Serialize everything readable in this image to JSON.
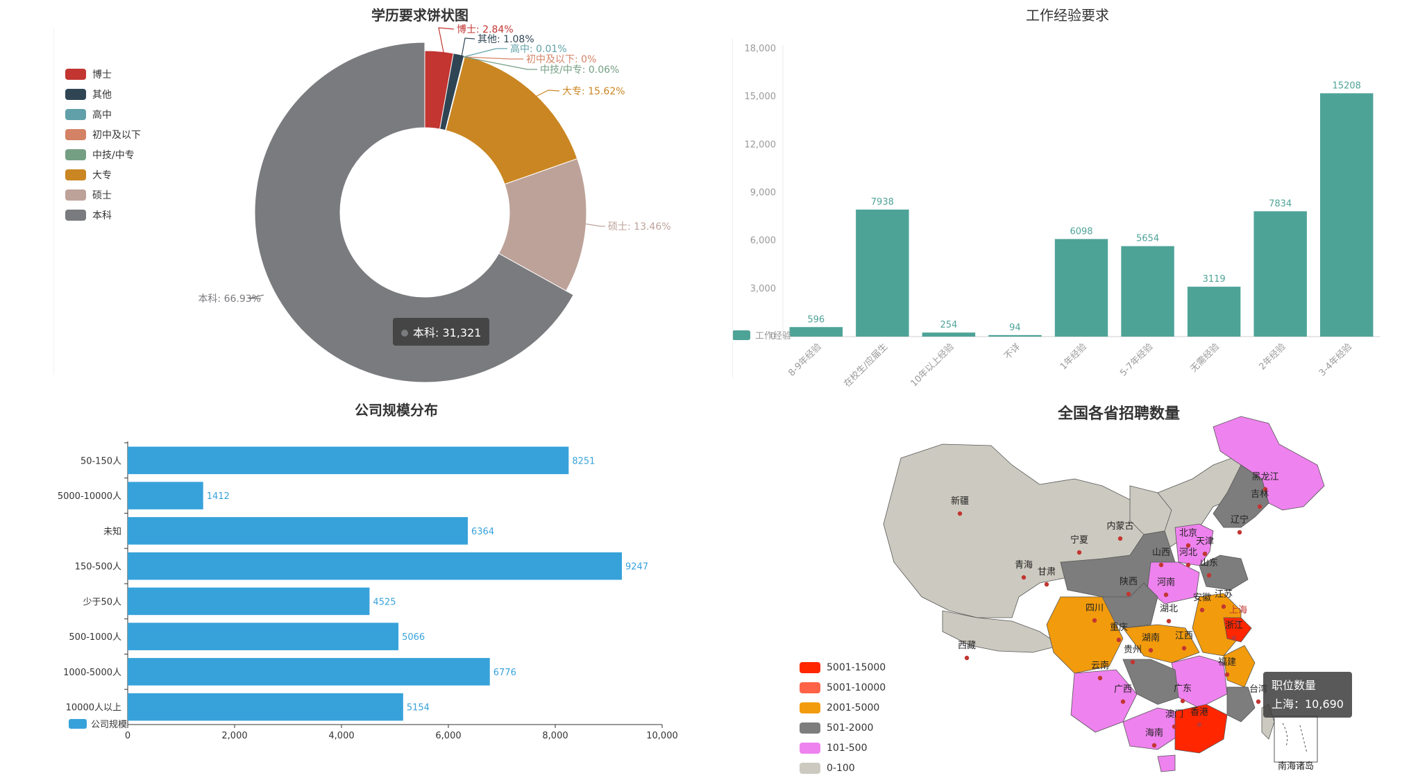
{
  "chart_data": [
    {
      "type": "pie",
      "title": "学历要求饼状图",
      "legend_position": "left",
      "slices": [
        {
          "name": "博士",
          "percent": 2.84,
          "color": "#c23531"
        },
        {
          "name": "其他",
          "percent": 1.08,
          "color": "#2f4554"
        },
        {
          "name": "高中",
          "percent": 0.01,
          "color": "#61a0a8"
        },
        {
          "name": "初中及以下",
          "percent": 0,
          "color": "#d48265"
        },
        {
          "name": "中技/中专",
          "percent": 0.06,
          "color": "#749f83"
        },
        {
          "name": "大专",
          "percent": 15.62,
          "color": "#ca8622"
        },
        {
          "name": "硕士",
          "percent": 13.46,
          "color": "#bda29a"
        },
        {
          "name": "本科",
          "percent": 66.93,
          "color": "#7a7b7e"
        }
      ],
      "slice_labels": [
        "博士: 2.84%",
        "其他: 1.08%",
        "高中: 0.01%",
        "初中及以下: 0%",
        "中技/中专: 0.06%",
        "大专: 15.62%",
        "硕士: 13.46%",
        "本科: 66.93%"
      ],
      "tooltip": "本科: 31,321"
    },
    {
      "type": "bar",
      "title": "工作经验要求",
      "categories": [
        "8-9年经验",
        "在校生/应届生",
        "10年以上经验",
        "不详",
        "1年经验",
        "5-7年经验",
        "无需经验",
        "2年经验",
        "3-4年经验"
      ],
      "series": [
        {
          "name": "工作经验",
          "values": [
            596,
            7938,
            254,
            94,
            6098,
            5654,
            3119,
            7834,
            15208
          ]
        }
      ],
      "value_labels": [
        "596",
        "7938",
        "254",
        "94",
        "6098",
        "5654",
        "3119",
        "7834",
        "15208"
      ],
      "y_ticks": [
        "0",
        "3,000",
        "6,000",
        "9,000",
        "12,000",
        "15,000",
        "18,000"
      ],
      "ylim": [
        0,
        18000
      ],
      "color": "#4ea397"
    },
    {
      "type": "bar",
      "orientation": "horizontal",
      "title": "公司规模分布",
      "categories": [
        "50-150人",
        "5000-10000人",
        "未知",
        "150-500人",
        "少于50人",
        "500-1000人",
        "1000-5000人",
        "10000人以上"
      ],
      "series": [
        {
          "name": "公司规模",
          "values": [
            8251,
            1412,
            6364,
            9247,
            4525,
            5066,
            6776,
            5154
          ]
        }
      ],
      "value_labels": [
        "8251",
        "1412",
        "6364",
        "9247",
        "4525",
        "5066",
        "6776",
        "5154"
      ],
      "x_ticks": [
        "0",
        "2,000",
        "4,000",
        "6,000",
        "8,000",
        "10,000"
      ],
      "xlim": [
        0,
        10000
      ],
      "color": "#37a2da"
    },
    {
      "type": "map",
      "title": "全国各省招聘数量",
      "visual_map": [
        {
          "label": "5001-15000",
          "color": "#ff2600"
        },
        {
          "label": "5001-10000",
          "color": "#ff6347"
        },
        {
          "label": "2001-5000",
          "color": "#f29b0c"
        },
        {
          "label": "501-2000",
          "color": "#7d7d7d"
        },
        {
          "label": "101-500",
          "color": "#ee82ee"
        },
        {
          "label": "0-100",
          "color": "#cccac0"
        }
      ],
      "provinces": [
        "新疆",
        "西藏",
        "青海",
        "甘肃",
        "宁夏",
        "内蒙古",
        "黑龙江",
        "吉林",
        "辽宁",
        "北京",
        "天津",
        "河北",
        "山西",
        "山东",
        "陕西",
        "河南",
        "四川",
        "重庆",
        "湖北",
        "安徽",
        "江苏",
        "上海",
        "浙江",
        "湖南",
        "江西",
        "贵州",
        "云南",
        "广西",
        "广东",
        "福建",
        "台湾",
        "香港",
        "澳门",
        "海南",
        "南海诸岛"
      ],
      "tooltip": {
        "title": "职位数量",
        "value": "上海：10,690"
      }
    }
  ]
}
